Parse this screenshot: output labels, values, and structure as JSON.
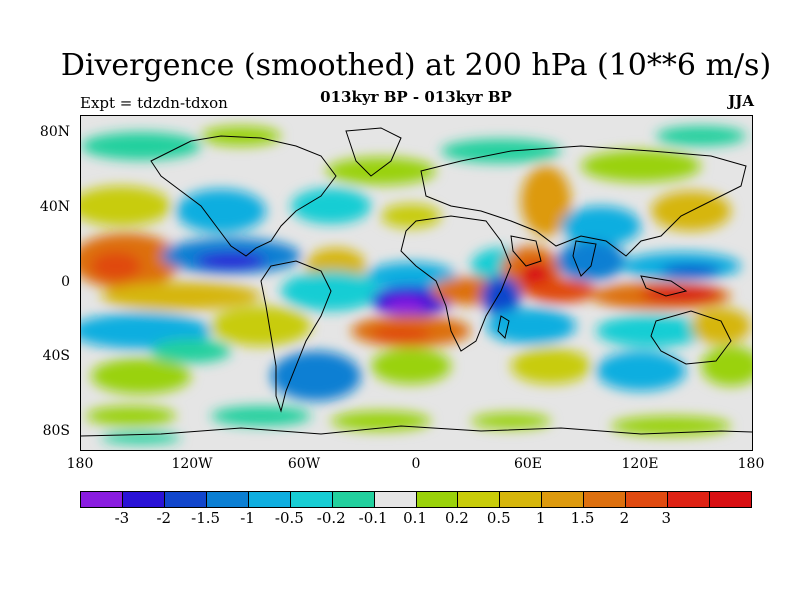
{
  "plot": {
    "title": "Divergence (smoothed) at 200 hPa (10**6 m/s)",
    "subtitle": "013kyr BP - 013kyr BP",
    "experiment": "Expt = tdzdn-tdxon",
    "season": "JJA"
  },
  "axes": {
    "y_ticks": [
      "80N",
      "40N",
      "0",
      "40S",
      "80S"
    ],
    "x_ticks": [
      "180",
      "120W",
      "60W",
      "0",
      "60E",
      "120E",
      "180"
    ]
  },
  "colorbar": {
    "colors": [
      "#8a1ce0",
      "#2a12d6",
      "#1146cc",
      "#0b7fd3",
      "#0eaee0",
      "#17cdd4",
      "#22d09e",
      "#e5e5e5",
      "#9ad20a",
      "#c8cc0a",
      "#d6b60c",
      "#dd9a0e",
      "#dd700f",
      "#e04a10",
      "#de2214",
      "#d80f12"
    ],
    "labels": [
      "-3",
      "-2",
      "-1.5",
      "-1",
      "-0.5",
      "-0.2",
      "-0.1",
      "0.1",
      "0.2",
      "0.5",
      "1",
      "1.5",
      "2",
      "3"
    ]
  },
  "legend_colors": {
    "land_outline": "#000000",
    "near_zero": "#e5e5e5"
  }
}
